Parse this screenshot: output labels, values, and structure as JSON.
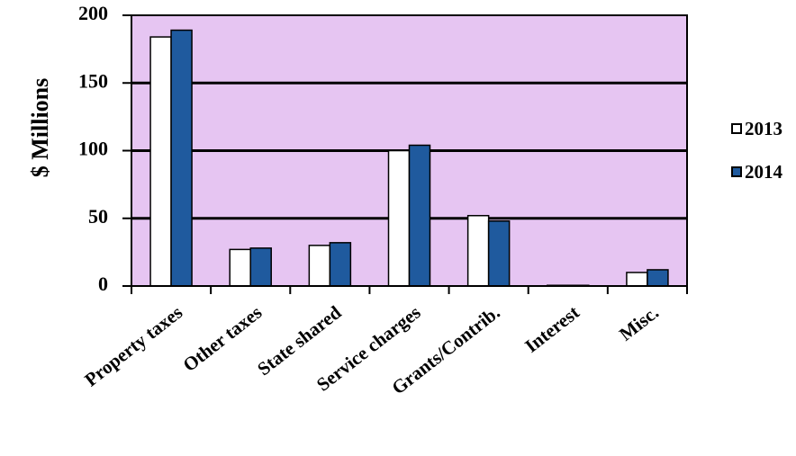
{
  "chart_data": {
    "type": "bar",
    "title": "",
    "xlabel": "",
    "ylabel": "$ Millions",
    "ylim": [
      0,
      200
    ],
    "yticks": [
      "0",
      "50",
      "100",
      "150",
      "200"
    ],
    "grid": true,
    "legend_position": "right",
    "categories": [
      "Property taxes",
      "Other taxes",
      "State shared",
      "Service charges",
      "Grants/Contrib.",
      "Interest",
      "Misc."
    ],
    "series": [
      {
        "name": "2013",
        "color": "#ffffff",
        "values": [
          184,
          27,
          30,
          100,
          52,
          0.5,
          10
        ]
      },
      {
        "name": "2014",
        "color": "#1f5a9e",
        "values": [
          189,
          28,
          32,
          104,
          48,
          0.5,
          12
        ]
      }
    ],
    "plot_background": "#e6c5f2"
  }
}
